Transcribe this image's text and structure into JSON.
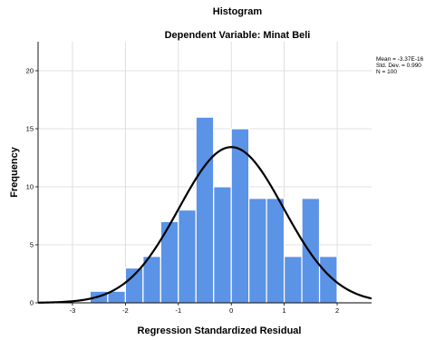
{
  "chart_data": {
    "type": "bar",
    "title": "Histogram",
    "subtitle": "Dependent Variable: Minat Beli",
    "xlabel": "Regression Standardized Residual",
    "ylabel": "Frequency",
    "xlim": [
      -3.65,
      2.65
    ],
    "ylim": [
      0,
      22.5
    ],
    "x_ticks": [
      -3,
      -2,
      -1,
      0,
      1,
      2
    ],
    "y_ticks": [
      0,
      5,
      10,
      15,
      20
    ],
    "bin_width": 0.333,
    "bins": [
      {
        "start": -2.667,
        "value": 1
      },
      {
        "start": -2.333,
        "value": 1
      },
      {
        "start": -2.0,
        "value": 3
      },
      {
        "start": -1.667,
        "value": 4
      },
      {
        "start": -1.333,
        "value": 7
      },
      {
        "start": -1.0,
        "value": 8
      },
      {
        "start": -0.667,
        "value": 16
      },
      {
        "start": -0.333,
        "value": 10
      },
      {
        "start": 0.0,
        "value": 15
      },
      {
        "start": 0.333,
        "value": 9
      },
      {
        "start": 0.667,
        "value": 9
      },
      {
        "start": 1.0,
        "value": 4
      },
      {
        "start": 1.333,
        "value": 9
      },
      {
        "start": 1.667,
        "value": 4
      }
    ],
    "normal_curve": {
      "mean": -3.37e-16,
      "std_dev": 0.99,
      "n": 100
    },
    "stats_text": [
      "Mean = -3.37E-16",
      "Std. Dev. = 0.990",
      "N = 100"
    ],
    "grid": true,
    "colors": {
      "bar_fill": "#5b93e6",
      "bar_stroke": "#ffffff",
      "curve": "#000000",
      "grid": "#d8d8d8"
    }
  }
}
